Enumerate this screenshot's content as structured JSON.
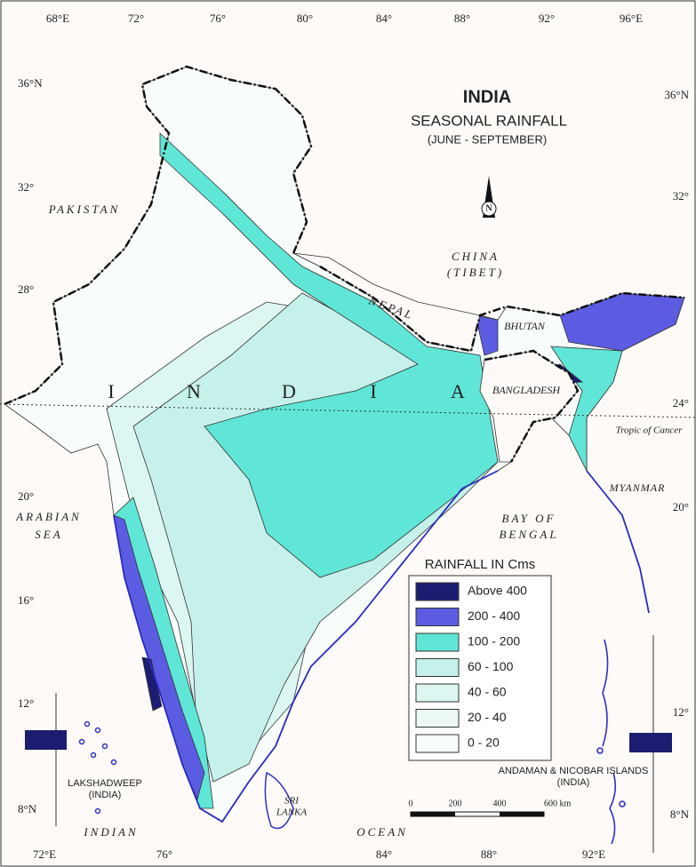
{
  "title": "INDIA",
  "subtitle": "SEASONAL RAINFALL",
  "period": "(JUNE - SEPTEMBER)",
  "longitude_labels_top": [
    "68°E",
    "72°",
    "76°",
    "80°",
    "84°",
    "88°",
    "92°",
    "96°E"
  ],
  "longitude_labels_bottom": [
    "72°E",
    "76°",
    "84°",
    "88°",
    "92°E"
  ],
  "latitude_labels_left": [
    "36°N",
    "32°",
    "28°",
    "20°",
    "16°",
    "12°",
    "8°N"
  ],
  "latitude_labels_right": [
    "36°N",
    "32°",
    "24°",
    "20°",
    "12°",
    "8°N"
  ],
  "places": {
    "pakistan": "PAKISTAN",
    "china": "CHINA",
    "tibet": "(TIBET)",
    "nepal": "NEPAL",
    "bhutan": "BHUTAN",
    "bangladesh": "BANGLADESH",
    "myanmar": "MYANMAR",
    "arabian": "ARABIAN",
    "sea": "SEA",
    "bay_of": "BAY OF",
    "bengal": "BENGAL",
    "indian": "INDIAN",
    "ocean": "OCEAN",
    "sri": "SRI",
    "lanka": "LANKA",
    "lakshadweep": "LAKSHADWEEP",
    "lakshadweep_note": "(INDIA)",
    "andaman": "ANDAMAN & NICOBAR ISLANDS",
    "andaman_note": "(INDIA)"
  },
  "india_letters": [
    "I",
    "N",
    "D",
    "I",
    "A"
  ],
  "tropic": "Tropic of Cancer",
  "north": "N",
  "legend": {
    "title": "RAINFALL IN Cms",
    "classes": [
      {
        "label": "Above 400",
        "color": "#1c1c70"
      },
      {
        "label": "200 - 400",
        "color": "#5c5ce2"
      },
      {
        "label": "100 - 200",
        "color": "#5fe6d6"
      },
      {
        "label": "60 - 100",
        "color": "#c6f1ea"
      },
      {
        "label": "40 - 60",
        "color": "#dcf6f2"
      },
      {
        "label": "20 - 40",
        "color": "#ecf9f7"
      },
      {
        "label": "0 - 20",
        "color": "#f8fdfc"
      }
    ]
  },
  "scale": [
    "0",
    "200",
    "400",
    "600 km"
  ]
}
